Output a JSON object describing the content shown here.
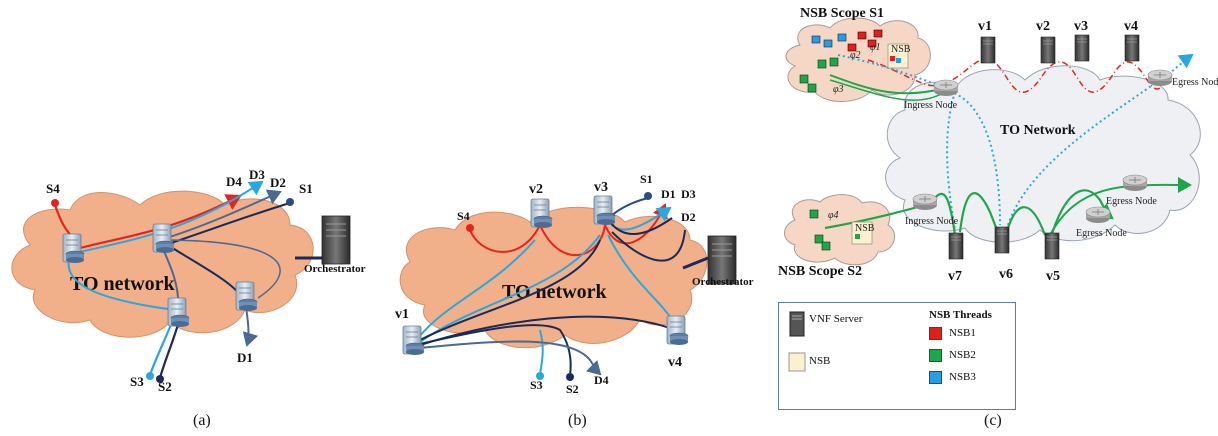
{
  "panel_a": {
    "caption": "(a)",
    "cloud_label": "TO network",
    "orchestrator": "Orchestrator",
    "sources": [
      "S4",
      "S3",
      "S2",
      "S1"
    ],
    "destinations": [
      "D4",
      "D3",
      "D2",
      "D1"
    ]
  },
  "panel_b": {
    "caption": "(b)",
    "cloud_label": "TO network",
    "orchestrator": "Orchestrator",
    "servers": [
      "v1",
      "v2",
      "v3",
      "v4"
    ],
    "sources": [
      "S4",
      "S1",
      "S3",
      "S2"
    ],
    "destinations": [
      "D1",
      "D3",
      "D2",
      "D4"
    ]
  },
  "panel_c": {
    "caption": "(c)",
    "scope1": "NSB Scope S1",
    "scope2": "NSB Scope S2",
    "cloud_label": "TO Network",
    "ingress": "Ingress Node",
    "egress": "Egress Node",
    "servers_top": [
      "v1",
      "v2",
      "v3",
      "v4"
    ],
    "servers_bottom": [
      "v7",
      "v6",
      "v5"
    ],
    "phis": [
      "φ1",
      "φ2",
      "φ3",
      "φ4"
    ],
    "nsb_tag": "NSB",
    "legend": {
      "vnf_server": "VNF Server",
      "nsb": "NSB",
      "threads_title": "NSB Threads",
      "threads": [
        {
          "label": "NSB1",
          "color": "#e0201b"
        },
        {
          "label": "NSB2",
          "color": "#1fa64a"
        },
        {
          "label": "NSB3",
          "color": "#2a9de0"
        }
      ]
    }
  },
  "colors": {
    "red": "#e8231c",
    "light_blue": "#29a8e0",
    "navy": "#1a2a5a",
    "steel": "#4a6a94",
    "green": "#1fa64a",
    "orange_cloud": "#f2b08a",
    "gray_cloud": "#eef0f4"
  }
}
